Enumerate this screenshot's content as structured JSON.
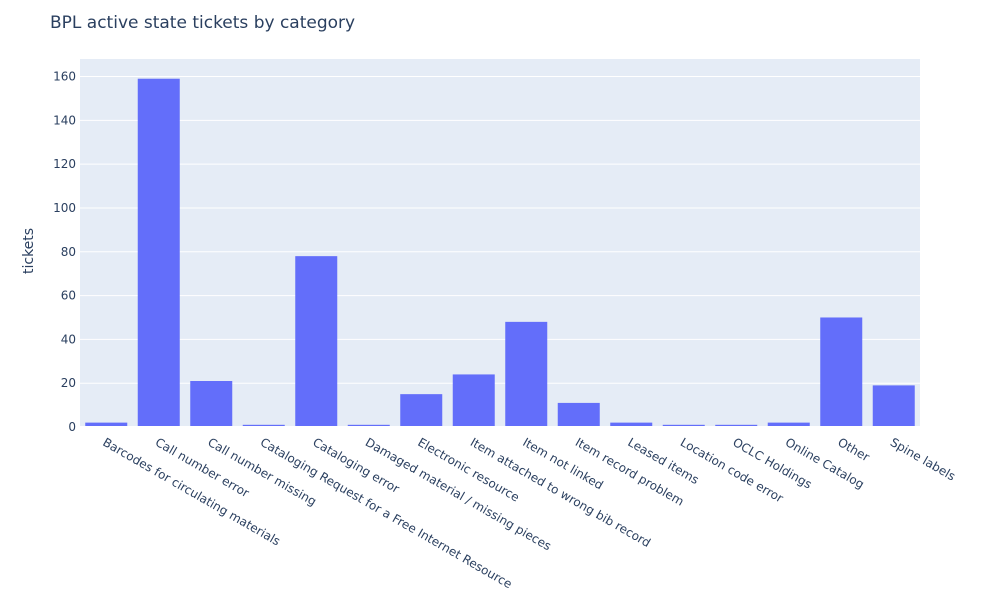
{
  "chart_data": {
    "type": "bar",
    "title": "BPL active state tickets by category",
    "xlabel": "",
    "ylabel": "tickets",
    "ylim": [
      0,
      168
    ],
    "y_ticks": [
      0,
      20,
      40,
      60,
      80,
      100,
      120,
      140,
      160
    ],
    "grid": true,
    "colors": {
      "bar": "#636efa",
      "plot_bg": "#e5ecf6",
      "grid": "#ffffff",
      "text": "#2a3f5f"
    },
    "categories": [
      "Barcodes for circulating materials",
      "Call number error",
      "Call number missing",
      "Cataloging Request for a Free Internet Resource",
      "Cataloging error",
      "Damaged material / missing pieces",
      "Electronic resource",
      "Item attached to wrong bib record",
      "Item not linked",
      "Item record problem",
      "Leased items",
      "Location code error",
      "OCLC Holdings",
      "Online Catalog",
      "Other",
      "Spine labels"
    ],
    "values": [
      2,
      159,
      21,
      1,
      78,
      1,
      15,
      24,
      48,
      11,
      2,
      1,
      1,
      2,
      50,
      19
    ]
  }
}
